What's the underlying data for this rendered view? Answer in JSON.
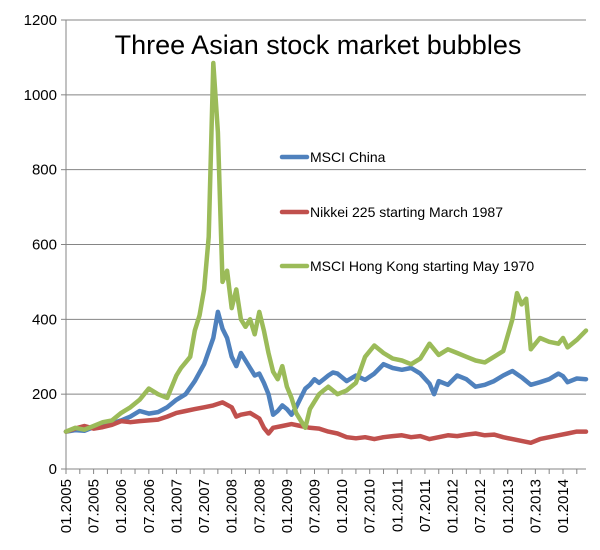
{
  "chart_data": {
    "type": "line",
    "title": "Three Asian stock market bubbles",
    "xlabel": "",
    "ylabel": "",
    "ylim": [
      0,
      1200
    ],
    "yticks": [
      "0",
      "200",
      "400",
      "600",
      "800",
      "1000",
      "1200"
    ],
    "x_tick_labels": [
      "01.2005",
      "07.2005",
      "01.2006",
      "07.2006",
      "01.2007",
      "07.2007",
      "01.2008",
      "07.2008",
      "01.2009",
      "07.2009",
      "01.2010",
      "07.2010",
      "01.2011",
      "07.2011",
      "01.2012",
      "07.2012",
      "01.2013",
      "07.2013",
      "01.2014"
    ],
    "x_start": "2005-01",
    "x_end": "2014-06",
    "grid": true,
    "legend_placement": "center-right",
    "series": [
      {
        "name": "MSCI China",
        "color": "#4F81BD",
        "points": [
          [
            "2005-01",
            100
          ],
          [
            "2005-03",
            104
          ],
          [
            "2005-05",
            102
          ],
          [
            "2005-07",
            112
          ],
          [
            "2005-09",
            118
          ],
          [
            "2005-11",
            122
          ],
          [
            "2006-01",
            130
          ],
          [
            "2006-03",
            140
          ],
          [
            "2006-05",
            155
          ],
          [
            "2006-07",
            148
          ],
          [
            "2006-09",
            152
          ],
          [
            "2006-11",
            165
          ],
          [
            "2007-01",
            185
          ],
          [
            "2007-03",
            200
          ],
          [
            "2007-05",
            235
          ],
          [
            "2007-07",
            280
          ],
          [
            "2007-09",
            350
          ],
          [
            "2007-10",
            420
          ],
          [
            "2007-11",
            375
          ],
          [
            "2007-12",
            350
          ],
          [
            "2008-01",
            300
          ],
          [
            "2008-02",
            275
          ],
          [
            "2008-03",
            310
          ],
          [
            "2008-04",
            290
          ],
          [
            "2008-05",
            270
          ],
          [
            "2008-06",
            250
          ],
          [
            "2008-07",
            255
          ],
          [
            "2008-08",
            230
          ],
          [
            "2008-09",
            200
          ],
          [
            "2008-10",
            145
          ],
          [
            "2008-11",
            155
          ],
          [
            "2008-12",
            170
          ],
          [
            "2009-01",
            160
          ],
          [
            "2009-02",
            145
          ],
          [
            "2009-03",
            165
          ],
          [
            "2009-04",
            190
          ],
          [
            "2009-05",
            215
          ],
          [
            "2009-06",
            225
          ],
          [
            "2009-07",
            240
          ],
          [
            "2009-08",
            230
          ],
          [
            "2009-09",
            240
          ],
          [
            "2009-10",
            250
          ],
          [
            "2009-11",
            258
          ],
          [
            "2009-12",
            255
          ],
          [
            "2010-02",
            235
          ],
          [
            "2010-04",
            250
          ],
          [
            "2010-06",
            238
          ],
          [
            "2010-08",
            255
          ],
          [
            "2010-10",
            280
          ],
          [
            "2010-12",
            270
          ],
          [
            "2011-02",
            265
          ],
          [
            "2011-04",
            270
          ],
          [
            "2011-06",
            255
          ],
          [
            "2011-08",
            228
          ],
          [
            "2011-09",
            200
          ],
          [
            "2011-10",
            235
          ],
          [
            "2011-12",
            225
          ],
          [
            "2012-02",
            250
          ],
          [
            "2012-04",
            240
          ],
          [
            "2012-06",
            220
          ],
          [
            "2012-08",
            225
          ],
          [
            "2012-10",
            235
          ],
          [
            "2012-12",
            250
          ],
          [
            "2013-02",
            262
          ],
          [
            "2013-04",
            245
          ],
          [
            "2013-06",
            225
          ],
          [
            "2013-08",
            232
          ],
          [
            "2013-10",
            240
          ],
          [
            "2013-12",
            255
          ],
          [
            "2014-01",
            248
          ],
          [
            "2014-02",
            232
          ],
          [
            "2014-04",
            242
          ],
          [
            "2014-06",
            240
          ]
        ]
      },
      {
        "name": "Nikkei 225 starting March 1987",
        "color": "#C0504D",
        "points": [
          [
            "2005-01",
            100
          ],
          [
            "2005-03",
            108
          ],
          [
            "2005-05",
            115
          ],
          [
            "2005-07",
            108
          ],
          [
            "2005-09",
            112
          ],
          [
            "2005-11",
            118
          ],
          [
            "2006-01",
            128
          ],
          [
            "2006-03",
            125
          ],
          [
            "2006-05",
            128
          ],
          [
            "2006-07",
            130
          ],
          [
            "2006-09",
            132
          ],
          [
            "2006-11",
            140
          ],
          [
            "2007-01",
            150
          ],
          [
            "2007-03",
            155
          ],
          [
            "2007-05",
            160
          ],
          [
            "2007-07",
            165
          ],
          [
            "2007-09",
            170
          ],
          [
            "2007-11",
            178
          ],
          [
            "2008-01",
            165
          ],
          [
            "2008-02",
            140
          ],
          [
            "2008-03",
            145
          ],
          [
            "2008-05",
            150
          ],
          [
            "2008-07",
            135
          ],
          [
            "2008-08",
            110
          ],
          [
            "2008-09",
            95
          ],
          [
            "2008-10",
            110
          ],
          [
            "2008-12",
            115
          ],
          [
            "2009-02",
            120
          ],
          [
            "2009-04",
            115
          ],
          [
            "2009-06",
            110
          ],
          [
            "2009-08",
            108
          ],
          [
            "2009-10",
            100
          ],
          [
            "2009-12",
            95
          ],
          [
            "2010-02",
            85
          ],
          [
            "2010-04",
            82
          ],
          [
            "2010-06",
            85
          ],
          [
            "2010-08",
            80
          ],
          [
            "2010-10",
            85
          ],
          [
            "2010-12",
            88
          ],
          [
            "2011-02",
            90
          ],
          [
            "2011-04",
            85
          ],
          [
            "2011-06",
            88
          ],
          [
            "2011-08",
            80
          ],
          [
            "2011-10",
            85
          ],
          [
            "2011-12",
            90
          ],
          [
            "2012-02",
            88
          ],
          [
            "2012-04",
            92
          ],
          [
            "2012-06",
            95
          ],
          [
            "2012-08",
            90
          ],
          [
            "2012-10",
            92
          ],
          [
            "2012-12",
            85
          ],
          [
            "2013-02",
            80
          ],
          [
            "2013-04",
            75
          ],
          [
            "2013-06",
            70
          ],
          [
            "2013-08",
            80
          ],
          [
            "2013-10",
            85
          ],
          [
            "2013-12",
            90
          ],
          [
            "2014-02",
            95
          ],
          [
            "2014-04",
            100
          ],
          [
            "2014-06",
            100
          ]
        ]
      },
      {
        "name": "MSCI Hong Kong starting May 1970",
        "color": "#9BBB59",
        "points": [
          [
            "2005-01",
            100
          ],
          [
            "2005-03",
            110
          ],
          [
            "2005-05",
            105
          ],
          [
            "2005-07",
            115
          ],
          [
            "2005-09",
            125
          ],
          [
            "2005-11",
            130
          ],
          [
            "2006-01",
            150
          ],
          [
            "2006-03",
            165
          ],
          [
            "2006-05",
            185
          ],
          [
            "2006-07",
            215
          ],
          [
            "2006-09",
            200
          ],
          [
            "2006-11",
            190
          ],
          [
            "2007-01",
            250
          ],
          [
            "2007-02",
            270
          ],
          [
            "2007-03",
            285
          ],
          [
            "2007-04",
            300
          ],
          [
            "2007-05",
            370
          ],
          [
            "2007-06",
            410
          ],
          [
            "2007-07",
            480
          ],
          [
            "2007-08",
            620
          ],
          [
            "2007-09",
            1085
          ],
          [
            "2007-10",
            900
          ],
          [
            "2007-11",
            500
          ],
          [
            "2007-12",
            530
          ],
          [
            "2008-01",
            430
          ],
          [
            "2008-02",
            480
          ],
          [
            "2008-03",
            400
          ],
          [
            "2008-04",
            380
          ],
          [
            "2008-05",
            400
          ],
          [
            "2008-06",
            360
          ],
          [
            "2008-07",
            420
          ],
          [
            "2008-08",
            370
          ],
          [
            "2008-09",
            310
          ],
          [
            "2008-10",
            260
          ],
          [
            "2008-11",
            240
          ],
          [
            "2008-12",
            275
          ],
          [
            "2009-01",
            220
          ],
          [
            "2009-02",
            190
          ],
          [
            "2009-03",
            150
          ],
          [
            "2009-04",
            130
          ],
          [
            "2009-05",
            110
          ],
          [
            "2009-06",
            160
          ],
          [
            "2009-07",
            180
          ],
          [
            "2009-08",
            200
          ],
          [
            "2009-09",
            210
          ],
          [
            "2009-10",
            220
          ],
          [
            "2009-12",
            200
          ],
          [
            "2010-02",
            210
          ],
          [
            "2010-04",
            230
          ],
          [
            "2010-06",
            300
          ],
          [
            "2010-08",
            330
          ],
          [
            "2010-10",
            310
          ],
          [
            "2010-12",
            295
          ],
          [
            "2011-02",
            290
          ],
          [
            "2011-04",
            280
          ],
          [
            "2011-06",
            295
          ],
          [
            "2011-08",
            335
          ],
          [
            "2011-10",
            305
          ],
          [
            "2011-12",
            320
          ],
          [
            "2012-02",
            310
          ],
          [
            "2012-04",
            300
          ],
          [
            "2012-06",
            290
          ],
          [
            "2012-08",
            285
          ],
          [
            "2012-10",
            300
          ],
          [
            "2012-12",
            315
          ],
          [
            "2013-02",
            400
          ],
          [
            "2013-03",
            470
          ],
          [
            "2013-04",
            440
          ],
          [
            "2013-05",
            455
          ],
          [
            "2013-06",
            320
          ],
          [
            "2013-08",
            350
          ],
          [
            "2013-10",
            340
          ],
          [
            "2013-12",
            335
          ],
          [
            "2014-01",
            350
          ],
          [
            "2014-02",
            325
          ],
          [
            "2014-04",
            345
          ],
          [
            "2014-06",
            370
          ]
        ]
      }
    ]
  }
}
